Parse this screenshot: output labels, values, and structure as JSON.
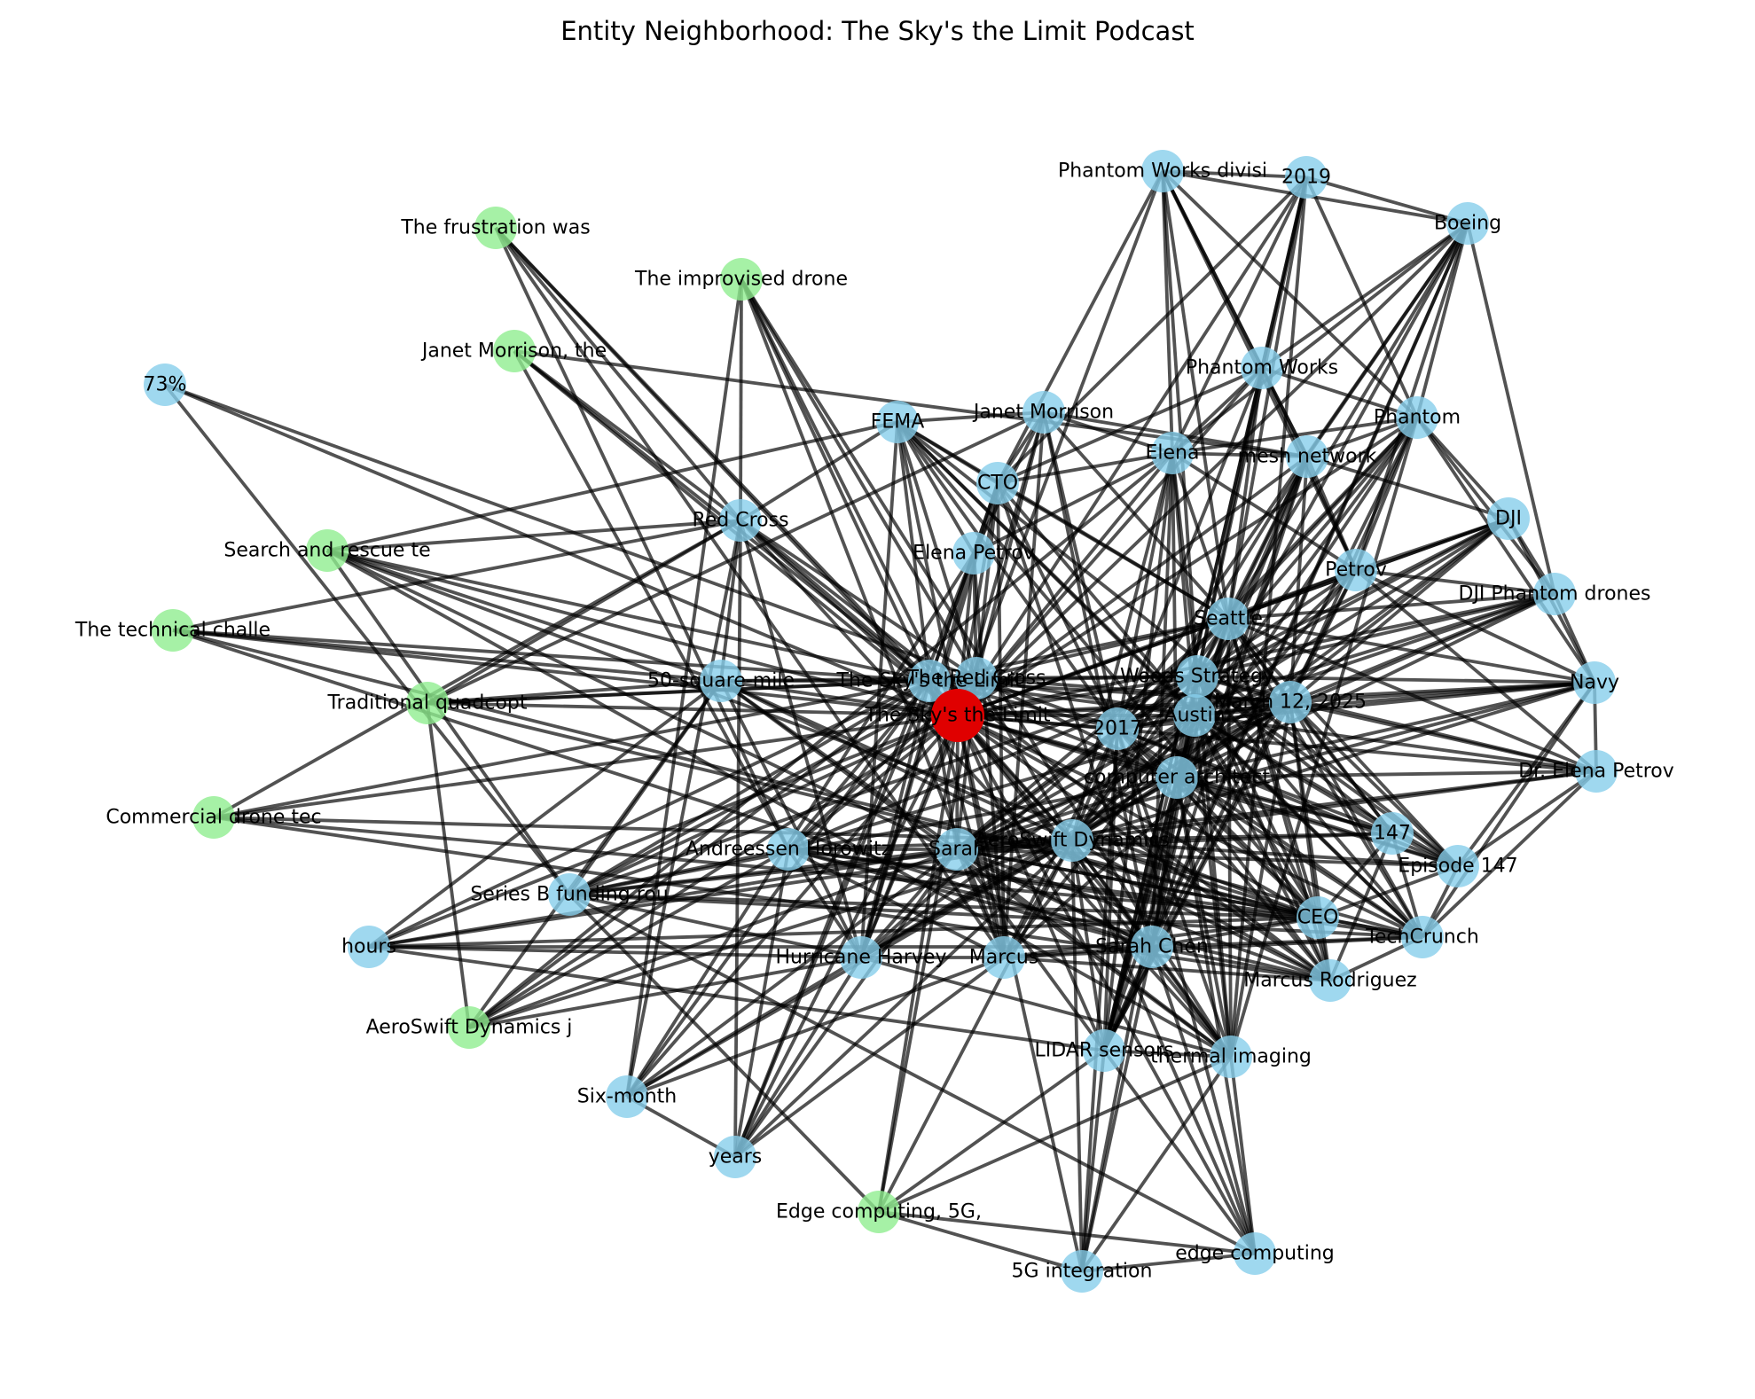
{
  "title": "Entity Neighborhood: The Sky's the Limit Podcast",
  "colors": {
    "center": "#e00000",
    "entity": "#87ceeb",
    "passage": "#90ee90",
    "edge": "#000000"
  },
  "nodes": [
    {
      "id": "center",
      "label": "The Sky's the Limit",
      "type": "center"
    },
    {
      "id": "sky2",
      "label": "The Sky's the Limit",
      "type": "entity"
    },
    {
      "id": "redcross2",
      "label": "The Red Cross",
      "type": "entity"
    },
    {
      "id": "phantomworksdiv",
      "label": "Phantom Works divisi",
      "type": "entity"
    },
    {
      "id": "y2019",
      "label": "2019",
      "type": "entity"
    },
    {
      "id": "boeing",
      "label": "Boeing",
      "type": "entity"
    },
    {
      "id": "frustration",
      "label": "The frustration was",
      "type": "passage"
    },
    {
      "id": "improvised",
      "label": "The improvised drone",
      "type": "passage"
    },
    {
      "id": "janetthe",
      "label": "Janet Morrison, the",
      "type": "passage"
    },
    {
      "id": "pct73",
      "label": "73%",
      "type": "entity"
    },
    {
      "id": "phantomworks",
      "label": "Phantom Works",
      "type": "entity"
    },
    {
      "id": "fema",
      "label": "FEMA",
      "type": "entity"
    },
    {
      "id": "janet",
      "label": "Janet Morrison",
      "type": "entity"
    },
    {
      "id": "phantom",
      "label": "Phantom",
      "type": "entity"
    },
    {
      "id": "cto",
      "label": "CTO",
      "type": "entity"
    },
    {
      "id": "elena",
      "label": "Elena",
      "type": "entity"
    },
    {
      "id": "mesh",
      "label": "mesh network",
      "type": "entity"
    },
    {
      "id": "redcross",
      "label": "Red Cross",
      "type": "entity"
    },
    {
      "id": "dji",
      "label": "DJI",
      "type": "entity"
    },
    {
      "id": "searchrescue",
      "label": "Search and rescue te",
      "type": "passage"
    },
    {
      "id": "elenapetrov",
      "label": "Elena Petrov",
      "type": "entity"
    },
    {
      "id": "petrov",
      "label": "Petrov",
      "type": "entity"
    },
    {
      "id": "djiphantom",
      "label": "DJI Phantom drones",
      "type": "entity"
    },
    {
      "id": "technical",
      "label": "The technical challe",
      "type": "passage"
    },
    {
      "id": "seattle",
      "label": "Seattle",
      "type": "entity"
    },
    {
      "id": "mile50",
      "label": "50-square-mile",
      "type": "entity"
    },
    {
      "id": "woods",
      "label": "Woods Strategy",
      "type": "entity"
    },
    {
      "id": "navy",
      "label": "Navy",
      "type": "entity"
    },
    {
      "id": "traditional",
      "label": "Traditional quadcopt",
      "type": "passage"
    },
    {
      "id": "march",
      "label": "March 12, 2025",
      "type": "entity"
    },
    {
      "id": "y2017",
      "label": "2017",
      "type": "entity"
    },
    {
      "id": "austin",
      "label": "Austin",
      "type": "entity"
    },
    {
      "id": "drelena",
      "label": "Dr. Elena Petrov",
      "type": "entity"
    },
    {
      "id": "computer",
      "label": "computer architect",
      "type": "entity"
    },
    {
      "id": "commercial",
      "label": "Commercial drone tec",
      "type": "passage"
    },
    {
      "id": "n147",
      "label": "147",
      "type": "entity"
    },
    {
      "id": "andreessen",
      "label": "Andreessen Horowitz",
      "type": "entity"
    },
    {
      "id": "sarah",
      "label": "Sarah",
      "type": "entity"
    },
    {
      "id": "aeroswift",
      "label": "AeroSwift Dynamics",
      "type": "entity"
    },
    {
      "id": "episode147",
      "label": "Episode 147",
      "type": "entity"
    },
    {
      "id": "seriesb",
      "label": "Series B funding rou",
      "type": "entity"
    },
    {
      "id": "ceo",
      "label": "CEO",
      "type": "entity"
    },
    {
      "id": "techcrunch",
      "label": "TechCrunch",
      "type": "entity"
    },
    {
      "id": "hours",
      "label": "hours",
      "type": "entity"
    },
    {
      "id": "sarahchen",
      "label": "Sarah Chen",
      "type": "entity"
    },
    {
      "id": "hurricane",
      "label": "Hurricane Harvey",
      "type": "entity"
    },
    {
      "id": "marcus",
      "label": "Marcus",
      "type": "entity"
    },
    {
      "id": "marcusrod",
      "label": "Marcus Rodriguez",
      "type": "entity"
    },
    {
      "id": "aeroswiftj",
      "label": "AeroSwift Dynamics j",
      "type": "passage"
    },
    {
      "id": "lidar",
      "label": "LIDAR sensors",
      "type": "entity"
    },
    {
      "id": "thermal",
      "label": "thermal imaging",
      "type": "entity"
    },
    {
      "id": "sixmonth",
      "label": "Six-month",
      "type": "entity"
    },
    {
      "id": "years",
      "label": "years",
      "type": "entity"
    },
    {
      "id": "edge5g",
      "label": "Edge computing, 5G,",
      "type": "passage"
    },
    {
      "id": "edgecomp",
      "label": "edge computing",
      "type": "entity"
    },
    {
      "id": "g5",
      "label": "5G integration",
      "type": "entity"
    }
  ]
}
